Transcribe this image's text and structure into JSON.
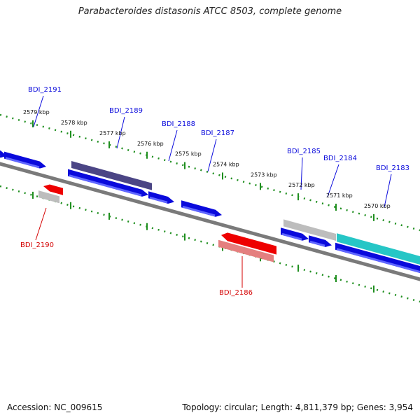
{
  "title": "Parabacteroides distasonis ATCC 8503, complete genome",
  "footer": {
    "accession": "Accession: NC_009615",
    "stats": "Topology: circular; Length: 4,811,379 bp; Genes: 3,954"
  },
  "colors": {
    "forward_gene": "#0a0adc",
    "forward_gene_hl": "#5f66ff",
    "forward_orf": "#4b4585",
    "reverse_gene": "#ee0000",
    "reverse_orf": "#e47f7f",
    "pseudo": "#bdbdbd",
    "cyan_gene": "#26c6c6",
    "axis": "#7a7a7a",
    "tick": "#1f8f1f",
    "label_forward": "#0a0adc",
    "label_reverse": "#d40000"
  },
  "kbp_ticks": [
    {
      "label": "2579 kbp"
    },
    {
      "label": "2578 kbp"
    },
    {
      "label": "2577 kbp"
    },
    {
      "label": "2576 kbp"
    },
    {
      "label": "2575 kbp"
    },
    {
      "label": "2574 kbp"
    },
    {
      "label": "2573 kbp"
    },
    {
      "label": "2572 kbp"
    },
    {
      "label": "2571 kbp"
    },
    {
      "label": "2570 kbp"
    }
  ],
  "genes": [
    {
      "label": "BDI_2191",
      "strand": "forward"
    },
    {
      "label": "BDI_2190",
      "strand": "reverse"
    },
    {
      "label": "BDI_2189",
      "strand": "forward"
    },
    {
      "label": "BDI_2188",
      "strand": "forward"
    },
    {
      "label": "BDI_2187",
      "strand": "forward"
    },
    {
      "label": "BDI_2186",
      "strand": "reverse"
    },
    {
      "label": "BDI_2185",
      "strand": "forward"
    },
    {
      "label": "BDI_2184",
      "strand": "forward"
    },
    {
      "label": "BDI_2183",
      "strand": "forward"
    }
  ]
}
